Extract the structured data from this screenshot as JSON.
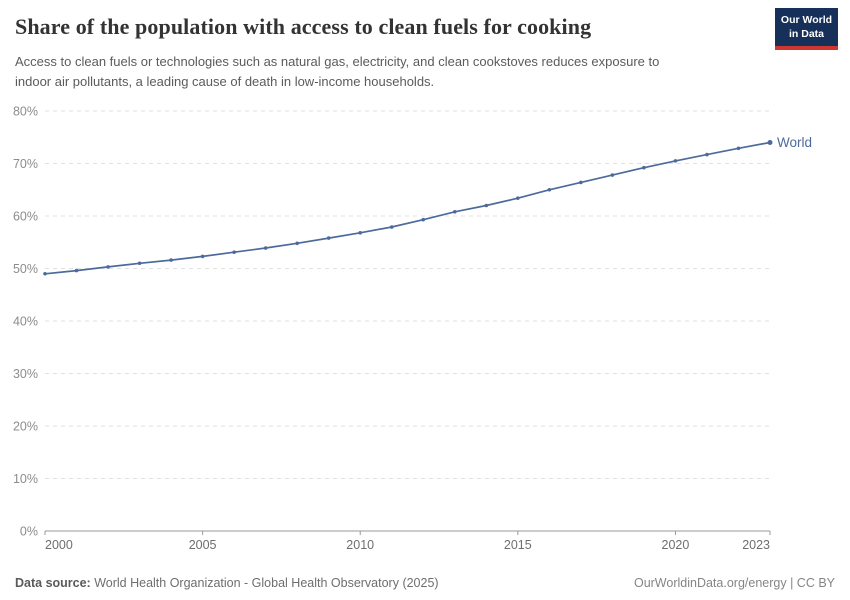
{
  "header": {
    "title": "Share of the population with access to clean fuels for cooking",
    "subtitle_line1": "Access to clean fuels or technologies such as natural gas, electricity, and clean cookstoves reduces exposure to",
    "subtitle_line2": "indoor air pollutants, a leading cause of death in low-income households.",
    "logo": {
      "line1": "Our World",
      "line2": "in Data",
      "bg_color": "#17305a",
      "stripe_color": "#cd3730"
    }
  },
  "chart_data": {
    "type": "line",
    "title": "Share of the population with access to clean fuels for cooking",
    "x": [
      2000,
      2001,
      2002,
      2003,
      2004,
      2005,
      2006,
      2007,
      2008,
      2009,
      2010,
      2011,
      2012,
      2013,
      2014,
      2015,
      2016,
      2017,
      2018,
      2019,
      2020,
      2021,
      2022,
      2023
    ],
    "series": [
      {
        "name": "World",
        "color": "#4c6a9c",
        "values": [
          49.0,
          49.6,
          50.3,
          51.0,
          51.6,
          52.3,
          53.1,
          53.9,
          54.8,
          55.8,
          56.8,
          57.9,
          59.3,
          60.8,
          62.0,
          63.4,
          65.0,
          66.4,
          67.8,
          69.2,
          70.5,
          71.7,
          72.9,
          74.0
        ]
      }
    ],
    "ylim": [
      0,
      80
    ],
    "yticks": [
      0,
      10,
      20,
      30,
      40,
      50,
      60,
      70,
      80
    ],
    "ytick_suffix": "%",
    "xticks": [
      2000,
      2005,
      2010,
      2015,
      2020,
      2023
    ],
    "grid": "horizontal-dashed",
    "legend": "line-end-label",
    "colors": {
      "grid": "#e0e0e0",
      "axis": "#9a9a9a",
      "ytick_label": "#8c8c8c",
      "xtick_label": "#6e6e6e"
    }
  },
  "footer": {
    "source_label": "Data source:",
    "source_text": " World Health Organization - Global Health Observatory (2025)",
    "right_url": "OurWorldinData.org/energy",
    "separator": " | ",
    "license": "CC BY"
  }
}
